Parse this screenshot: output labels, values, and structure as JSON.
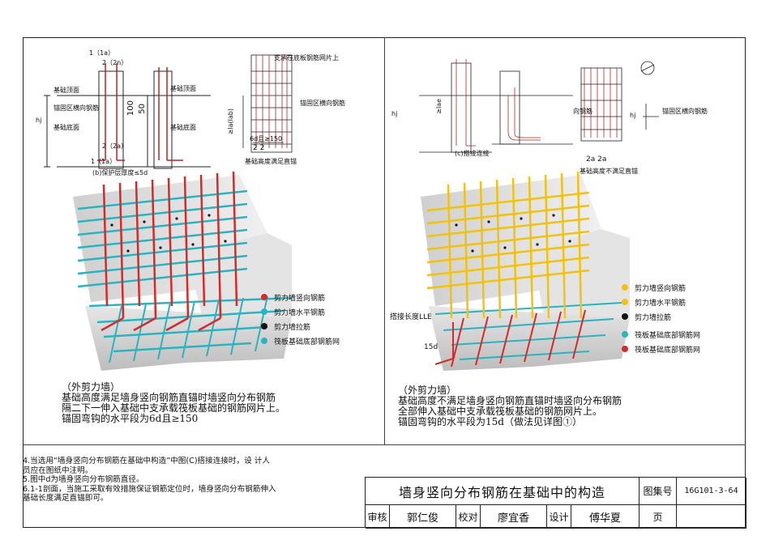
{
  "left_panel": {
    "section_labels": {
      "label_1a": "1（1a）",
      "label_2_2n": "2（2n）",
      "label_2_2a": "2（2a）",
      "label_1_1a_bottom": "1（1a）",
      "dim_100": "100",
      "dim_50": "50",
      "dim_hj": "hj"
    },
    "annotations": {
      "foundation_top": "基础顶面",
      "anchor_zone": "锚固区横向钢筋",
      "foundation_bottom": "基础底面",
      "foundation_top_2": "基础顶面",
      "foundation_bottom_2": "基础底面",
      "detail_b": "(b)保护层厚度≤5d",
      "support_note": "支承在底板钢筋网片上",
      "anchor_zone_2": "锚固区横向钢筋",
      "len_6d": "6d且≥150",
      "section_22": "2  2",
      "height_note": "基础高度满足直锚",
      "dim_la": "≥la(lab)"
    },
    "legend": [
      {
        "label": "剪力墙竖向钢筋",
        "color": "#d62a2a"
      },
      {
        "label": "剪力墙水平钢筋",
        "color": "#2bb3c0"
      },
      {
        "label": "剪力墙拉筋",
        "color": "#111111"
      },
      {
        "label": "筏板基础底部钢筋网",
        "color": "#2bb3c0"
      }
    ],
    "description": [
      "（外剪力墙）",
      "基础高度满足墙身竖向钢筋直锚时墙竖向分布钢筋",
      "隔二下一伸入基础中支承载筏板基础的钢筋网片上。",
      "锚固弯钩的水平段为6d且≥150"
    ]
  },
  "right_panel": {
    "annotations": {
      "detail_c": "(c)搭接连接",
      "section_2a": "2a  2a",
      "height_note": "基础高度不满足直锚",
      "vertical_bar": "向钢筋",
      "anchor_zone": "锚固区横向钢筋",
      "lap_length": "搭接长度LLE",
      "len_15d": "15d",
      "dim_hj": "hj",
      "dim_hj_2": "hj",
      "dim_la": "≥lae"
    },
    "legend": [
      {
        "label": "剪力墙竖向钢筋",
        "color": "#f2c20f"
      },
      {
        "label": "剪力墙水平钢筋",
        "color": "#f2c20f"
      },
      {
        "label": "剪力墙拉筋",
        "color": "#111111"
      },
      {
        "label": "筏板基础底部钢筋网",
        "color": "#2bb3c0"
      },
      {
        "label": "筏板基础底部钢筋网",
        "color": "#d62a2a"
      }
    ],
    "description": [
      "（外剪力墙）",
      "基础高度不满足墙身竖向钢筋直锚时墙竖向分布钢筋",
      "全部伸入基础中支承载筏板基础的钢筋网片上。",
      "锚固弯钩的水平段为15d（做法见详图①）"
    ]
  },
  "notes": [
    "4.当选用“墙身竖向分布钢筋在基础中构造”中图(C)搭接连接时，设 计人",
    "员应在图纸中注明。",
    "5.图中d为墙身竖向分布钢筋直径。",
    "6.1-1剖面，当施工采取有效措施保证钢筋定位时，墙身竖向分布钢筋伸入",
    "基础长度满足直锚即可。"
  ],
  "title_block": {
    "title": "墙身竖向分布钢筋在基础中的构造",
    "atlas_label": "图集号",
    "atlas_number": "16G101-3-64",
    "review_label": "审核",
    "reviewer": "郭仁俊",
    "check_label": "校对",
    "checker": "廖宜香",
    "design_label": "设计",
    "designer": "傅华夏",
    "page_label": "页"
  },
  "colors": {
    "red_bar": "#d62a2a",
    "cyan_bar": "#2bb3c0",
    "yellow_bar": "#f2c20f",
    "concrete": "#d9d9d9",
    "tie": "#111111"
  }
}
